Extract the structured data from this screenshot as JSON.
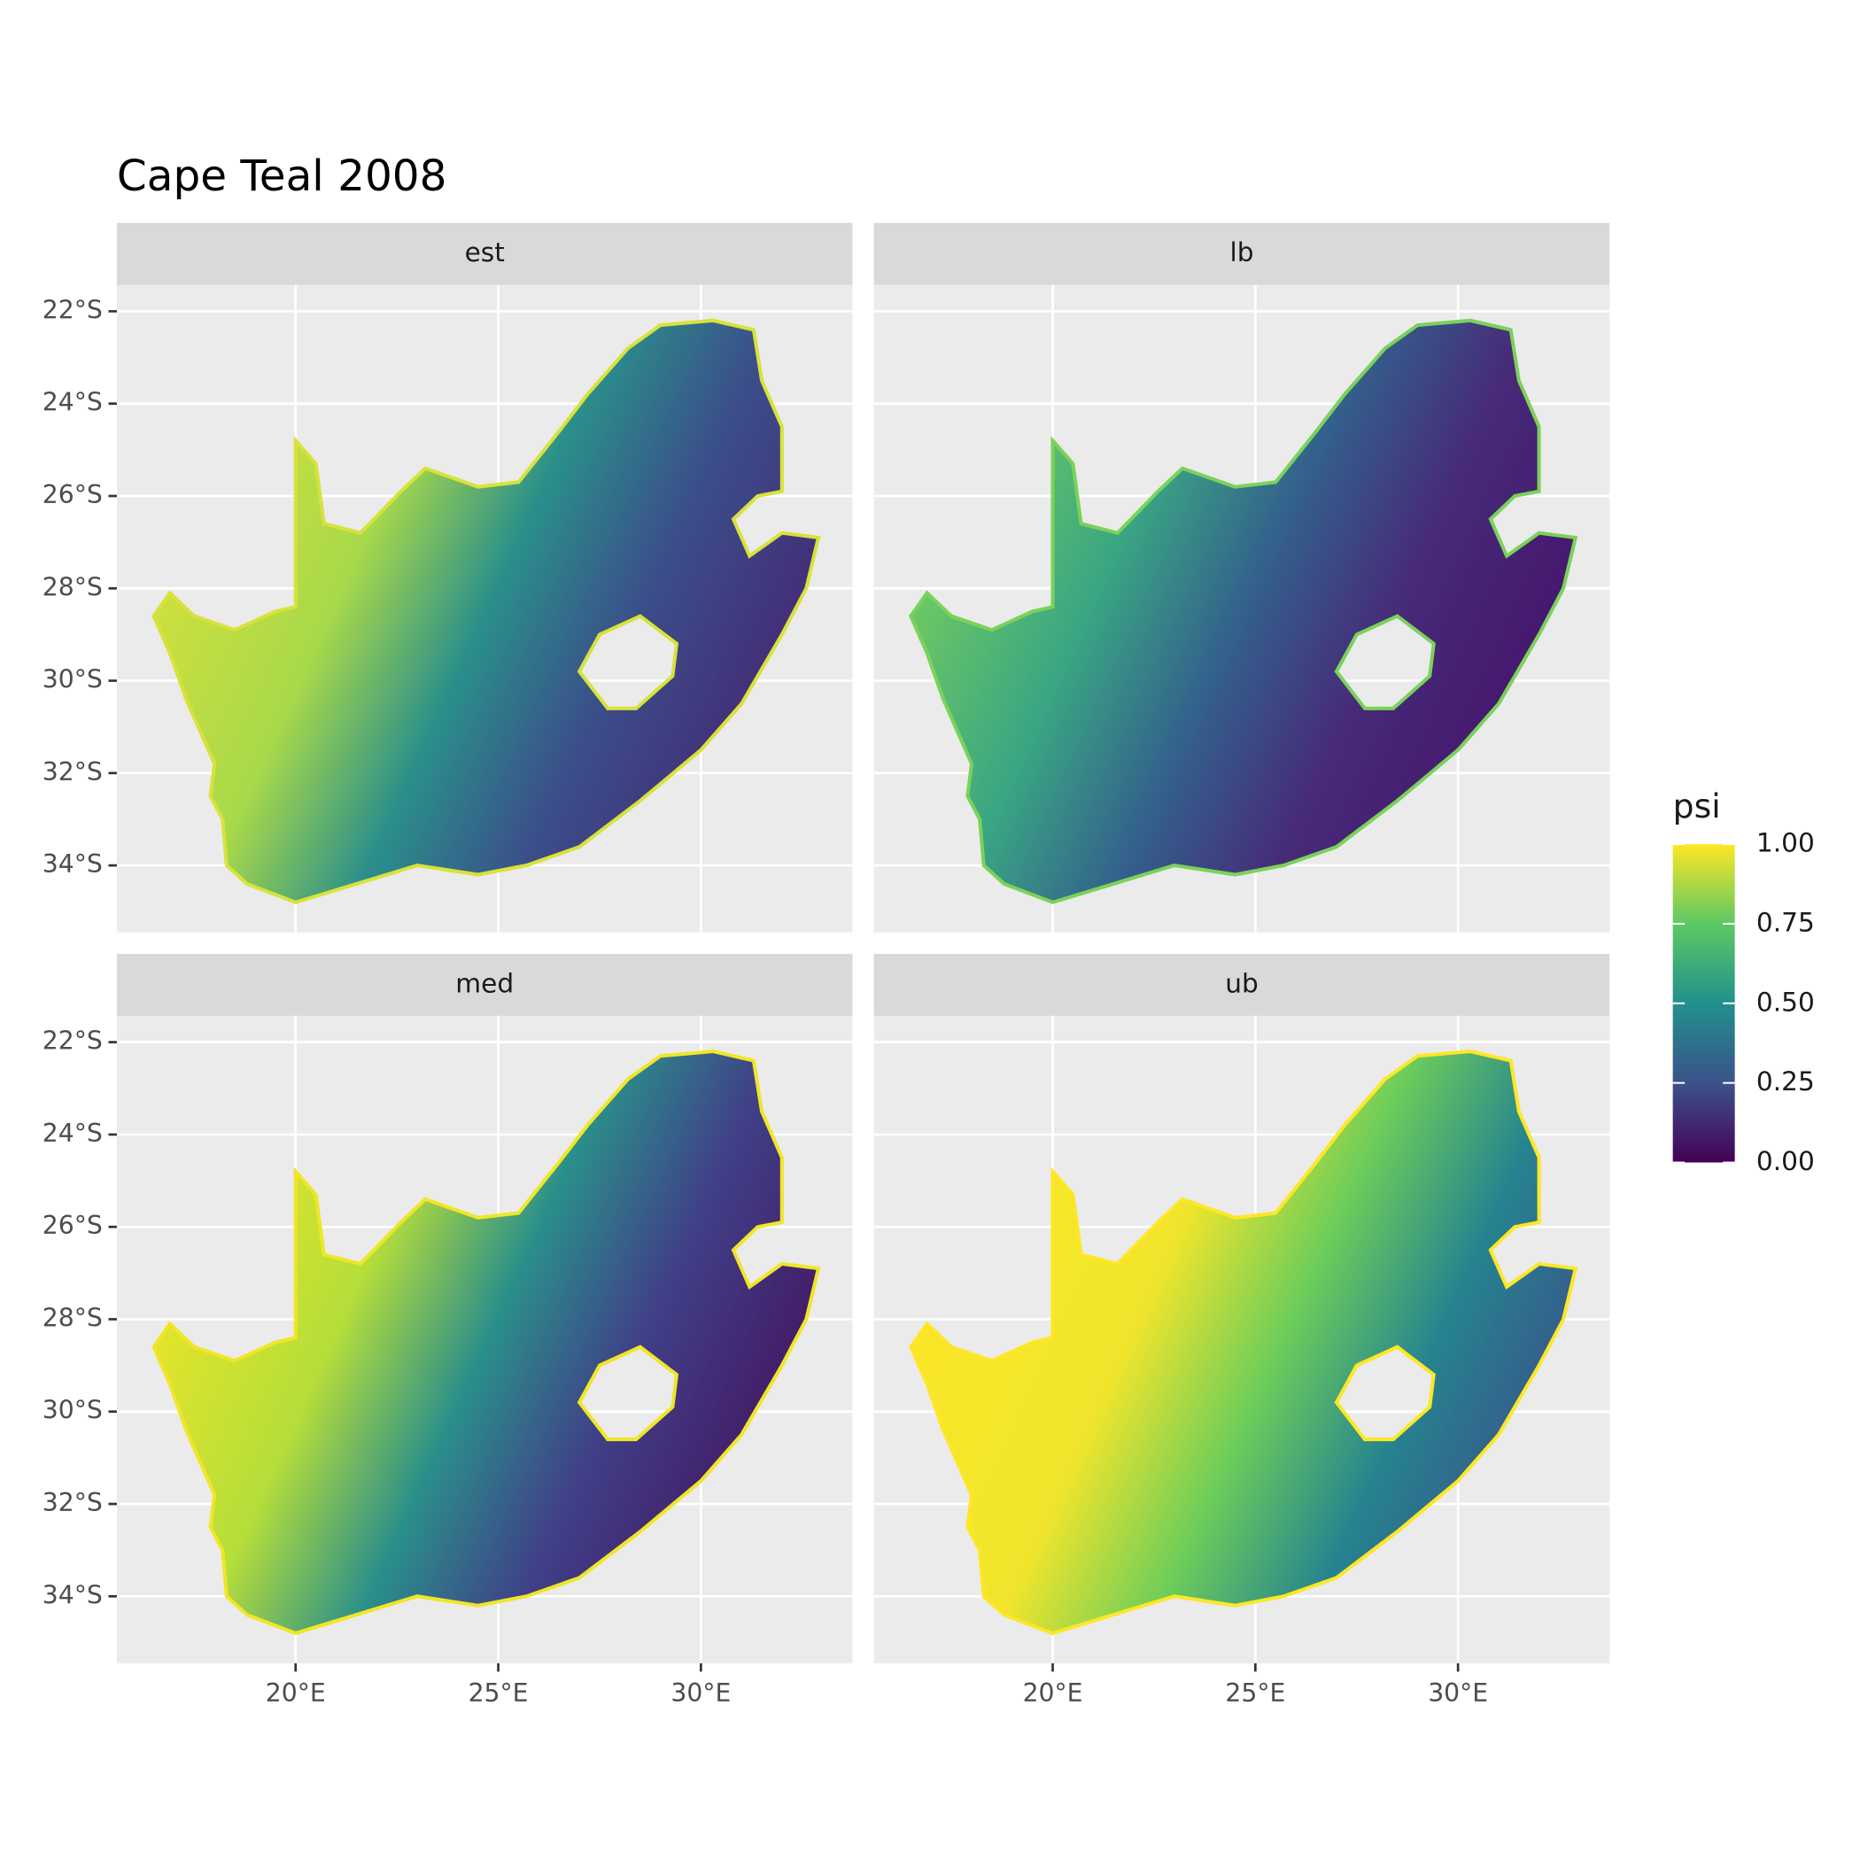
{
  "chart_data": {
    "type": "raster",
    "title": "Cape Teal 2008",
    "facets": [
      "est",
      "lb",
      "med",
      "ub"
    ],
    "xlim": [
      15.59,
      33.74
    ],
    "ylim": [
      -35.45,
      -21.43
    ],
    "xticks": [
      {
        "value": 20,
        "label": "20°E"
      },
      {
        "value": 25,
        "label": "25°E"
      },
      {
        "value": 30,
        "label": "30°E"
      }
    ],
    "yticks": [
      {
        "value": -22,
        "label": "22°S"
      },
      {
        "value": -24,
        "label": "24°S"
      },
      {
        "value": -26,
        "label": "26°S"
      },
      {
        "value": -28,
        "label": "28°S"
      },
      {
        "value": -30,
        "label": "30°S"
      },
      {
        "value": -32,
        "label": "32°S"
      },
      {
        "value": -34,
        "label": "34°S"
      }
    ],
    "grid": true,
    "legend": {
      "title": "psi",
      "limits": [
        0,
        1
      ],
      "ticks": [
        {
          "value": 0,
          "label": "0.00"
        },
        {
          "value": 0.25,
          "label": "0.25"
        },
        {
          "value": 0.5,
          "label": "0.50"
        },
        {
          "value": 0.75,
          "label": "0.75"
        },
        {
          "value": 1,
          "label": "1.00"
        }
      ],
      "colors": [
        "#440154",
        "#3b528b",
        "#21908c",
        "#5dc863",
        "#fde725"
      ]
    }
  }
}
